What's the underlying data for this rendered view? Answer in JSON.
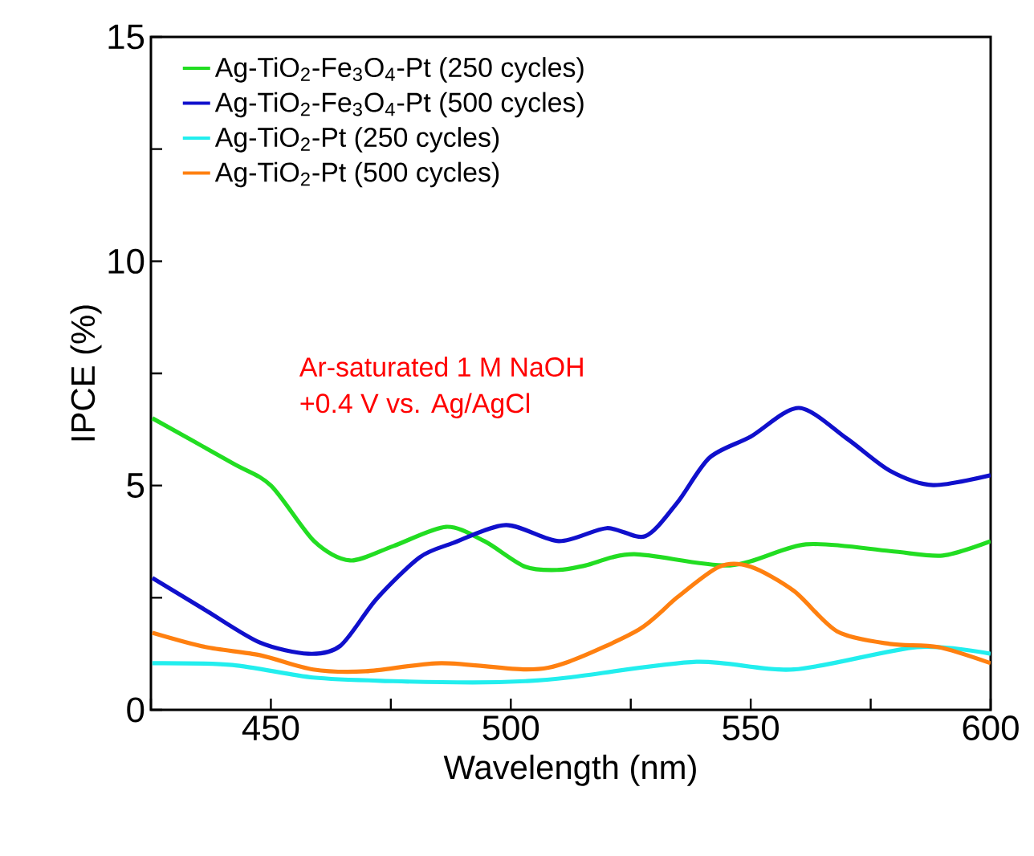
{
  "chart_data": {
    "type": "line",
    "xlabel": "Wavelength (nm)",
    "ylabel": "IPCE (%)",
    "xlim": [
      425,
      600
    ],
    "ylim": [
      0,
      15
    ],
    "xticks": [
      {
        "value": 425,
        "label": null
      },
      450,
      {
        "value": 475,
        "label": null
      },
      500,
      {
        "value": 525,
        "label": null
      },
      550,
      {
        "value": 575,
        "label": null
      },
      600
    ],
    "yticks": [
      0,
      {
        "value": 2.5,
        "label": null
      },
      5,
      {
        "value": 7.5,
        "label": null
      },
      10,
      {
        "value": 12.5,
        "label": null
      },
      15
    ],
    "legend": "top left",
    "grid": false,
    "marker": "none",
    "line_style": "solid",
    "annotations": [
      "Ar-saturated 1 M NaOH",
      "+0.4 V vs. Ag/AgCl"
    ],
    "series": [
      {
        "name": "Ag-TiO$_{2}$-Fe$_{3}$O$_{4}$-Pt (250 cycles)",
        "color": "#22dd22",
        "x": [
          425.3,
          442,
          450,
          459,
          466.5,
          475.5,
          486.5,
          494.5,
          503,
          510,
          515.6,
          525.7,
          545.7,
          561.5,
          579,
          590,
          600
        ],
        "values": [
          6.5,
          5.5,
          5.0,
          3.76,
          3.33,
          3.65,
          4.08,
          3.76,
          3.19,
          3.12,
          3.22,
          3.47,
          3.22,
          3.69,
          3.54,
          3.44,
          3.76
        ]
      },
      {
        "name": "Ag-TiO$_{2}$-Fe$_{3}$O$_{4}$-Pt (500 cycles)",
        "color": "#1010cc",
        "x": [
          425.3,
          436.4,
          447.7,
          457.8,
          464.5,
          472,
          481,
          488,
          499,
          510,
          520,
          528,
          534.7,
          541.4,
          550,
          560,
          570,
          579,
          588,
          600
        ],
        "values": [
          2.94,
          2.22,
          1.5,
          1.25,
          1.43,
          2.47,
          3.4,
          3.72,
          4.12,
          3.76,
          4.05,
          3.87,
          4.62,
          5.62,
          6.09,
          6.73,
          6.05,
          5.33,
          5.01,
          5.23
        ]
      },
      {
        "name": "Ag-TiO$_{2}$-Pt (250 cycles)",
        "color": "#22eeee",
        "x": [
          425.3,
          442,
          458.8,
          475.5,
          492,
          503,
          512,
          538.7,
          559,
          584.6,
          600
        ],
        "values": [
          1.04,
          1.0,
          0.72,
          0.64,
          0.61,
          0.64,
          0.72,
          1.07,
          0.9,
          1.4,
          1.25
        ]
      },
      {
        "name": "Ag-TiO$_{2}$-Pt (500 cycles)",
        "color": "#ff8010",
        "x": [
          425.3,
          436.4,
          447.7,
          458.8,
          469.8,
          485.5,
          503.3,
          512,
          526.7,
          534.7,
          543.4,
          550,
          559,
          568,
          579,
          589,
          600
        ],
        "values": [
          1.72,
          1.4,
          1.22,
          0.9,
          0.86,
          1.04,
          0.9,
          1.07,
          1.79,
          2.51,
          3.19,
          3.19,
          2.65,
          1.75,
          1.47,
          1.4,
          1.04
        ]
      }
    ]
  }
}
